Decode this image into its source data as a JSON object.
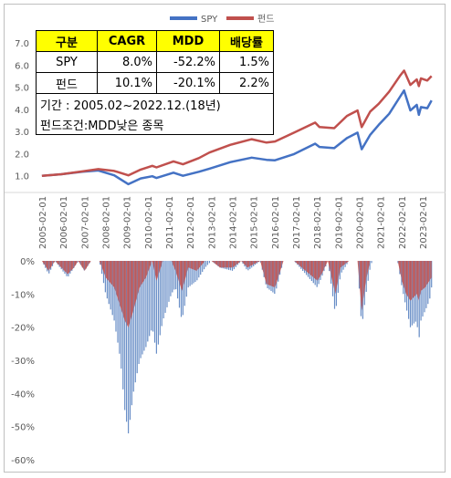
{
  "table": {
    "headers": [
      "구분",
      "CAGR",
      "MDD",
      "배당률"
    ],
    "rows": [
      {
        "name": "SPY",
        "cagr": "8.0%",
        "mdd": "-52.2%",
        "div": "1.5%"
      },
      {
        "name": "펀드",
        "cagr": "10.1%",
        "mdd": "-20.1%",
        "div": "2.2%"
      }
    ],
    "notes": [
      "기간 : 2005.02~2022.12.(18년)",
      "펀드조건:MDD낮은 종목"
    ]
  },
  "colors": {
    "spy": "#4472c4",
    "fund": "#c0504d",
    "spy_dd": "#6a8fc7",
    "fund_dd": "#c0504d"
  },
  "chart_data": [
    {
      "type": "line",
      "legend_position": "top-center",
      "ylim": [
        0.0,
        7.0
      ],
      "yticks": [
        "7.0",
        "6.0",
        "5.0",
        "4.0",
        "3.0",
        "2.0",
        "1.0"
      ],
      "x_start": "2005-02",
      "x_end": "2023-06",
      "series": [
        {
          "name": "SPY",
          "points": [
            [
              2005.08,
              1.0
            ],
            [
              2006.0,
              1.07
            ],
            [
              2007.0,
              1.18
            ],
            [
              2007.75,
              1.24
            ],
            [
              2008.5,
              1.02
            ],
            [
              2009.17,
              0.62
            ],
            [
              2009.75,
              0.88
            ],
            [
              2010.3,
              0.98
            ],
            [
              2010.5,
              0.9
            ],
            [
              2011.3,
              1.14
            ],
            [
              2011.75,
              1.0
            ],
            [
              2012.5,
              1.18
            ],
            [
              2013.0,
              1.32
            ],
            [
              2014.0,
              1.62
            ],
            [
              2015.0,
              1.82
            ],
            [
              2015.7,
              1.72
            ],
            [
              2016.1,
              1.7
            ],
            [
              2017.0,
              1.98
            ],
            [
              2018.0,
              2.45
            ],
            [
              2018.2,
              2.3
            ],
            [
              2018.9,
              2.25
            ],
            [
              2019.5,
              2.7
            ],
            [
              2020.0,
              2.95
            ],
            [
              2020.2,
              2.2
            ],
            [
              2020.6,
              2.85
            ],
            [
              2021.0,
              3.3
            ],
            [
              2021.5,
              3.8
            ],
            [
              2022.0,
              4.55
            ],
            [
              2022.2,
              4.85
            ],
            [
              2022.5,
              3.95
            ],
            [
              2022.8,
              4.2
            ],
            [
              2022.9,
              3.75
            ],
            [
              2023.0,
              4.1
            ],
            [
              2023.3,
              4.05
            ],
            [
              2023.5,
              4.4
            ]
          ]
        },
        {
          "name": "펀드",
          "points": [
            [
              2005.08,
              1.0
            ],
            [
              2006.0,
              1.07
            ],
            [
              2007.0,
              1.2
            ],
            [
              2007.75,
              1.3
            ],
            [
              2008.5,
              1.22
            ],
            [
              2009.17,
              1.02
            ],
            [
              2009.75,
              1.28
            ],
            [
              2010.3,
              1.45
            ],
            [
              2010.5,
              1.38
            ],
            [
              2011.3,
              1.65
            ],
            [
              2011.75,
              1.52
            ],
            [
              2012.5,
              1.8
            ],
            [
              2013.0,
              2.05
            ],
            [
              2014.0,
              2.4
            ],
            [
              2015.0,
              2.65
            ],
            [
              2015.7,
              2.5
            ],
            [
              2016.1,
              2.55
            ],
            [
              2017.0,
              2.95
            ],
            [
              2018.0,
              3.4
            ],
            [
              2018.2,
              3.2
            ],
            [
              2018.9,
              3.15
            ],
            [
              2019.5,
              3.7
            ],
            [
              2020.0,
              3.95
            ],
            [
              2020.2,
              3.2
            ],
            [
              2020.6,
              3.9
            ],
            [
              2021.0,
              4.25
            ],
            [
              2021.5,
              4.8
            ],
            [
              2022.0,
              5.5
            ],
            [
              2022.2,
              5.75
            ],
            [
              2022.5,
              5.1
            ],
            [
              2022.8,
              5.35
            ],
            [
              2022.9,
              5.05
            ],
            [
              2023.0,
              5.4
            ],
            [
              2023.3,
              5.3
            ],
            [
              2023.5,
              5.5
            ]
          ]
        }
      ]
    },
    {
      "type": "area",
      "ylim": [
        -60,
        0
      ],
      "yticks": [
        "0%",
        "-10%",
        "-20%",
        "-30%",
        "-40%",
        "-50%",
        "-60%"
      ],
      "categories": [
        "2005-02-01",
        "2006-02-01",
        "2007-02-01",
        "2008-02-01",
        "2009-02-01",
        "2010-02-01",
        "2011-02-01",
        "2012-02-01",
        "2013-02-01",
        "2014-02-01",
        "2015-02-01",
        "2016-02-01",
        "2017-02-01",
        "2018-02-01",
        "2019-02-01",
        "2020-02-01",
        "2021-02-01",
        "2022-02-01",
        "2023-02-01"
      ],
      "series": [
        {
          "name": "SPY",
          "points": [
            [
              2005.08,
              0
            ],
            [
              2005.4,
              -4
            ],
            [
              2005.7,
              0
            ],
            [
              2006.3,
              -5
            ],
            [
              2006.6,
              -2
            ],
            [
              2006.8,
              0
            ],
            [
              2007.1,
              -3
            ],
            [
              2007.4,
              0
            ],
            [
              2007.8,
              0
            ],
            [
              2008.1,
              -10
            ],
            [
              2008.5,
              -18
            ],
            [
              2008.8,
              -30
            ],
            [
              2009.0,
              -45
            ],
            [
              2009.17,
              -52.2
            ],
            [
              2009.4,
              -40
            ],
            [
              2009.7,
              -30
            ],
            [
              2010.0,
              -26
            ],
            [
              2010.3,
              -20
            ],
            [
              2010.5,
              -28
            ],
            [
              2010.8,
              -18
            ],
            [
              2011.2,
              -10
            ],
            [
              2011.4,
              -8
            ],
            [
              2011.7,
              -18
            ],
            [
              2012.0,
              -8
            ],
            [
              2012.4,
              -6
            ],
            [
              2012.8,
              -2
            ],
            [
              2013.1,
              0
            ],
            [
              2013.5,
              -2
            ],
            [
              2014.1,
              -3
            ],
            [
              2014.5,
              0
            ],
            [
              2014.8,
              -3
            ],
            [
              2015.4,
              0
            ],
            [
              2015.7,
              -8
            ],
            [
              2016.1,
              -10
            ],
            [
              2016.5,
              0
            ],
            [
              2017.0,
              0
            ],
            [
              2018.1,
              -8
            ],
            [
              2018.3,
              -5
            ],
            [
              2018.6,
              0
            ],
            [
              2018.95,
              -16
            ],
            [
              2019.2,
              -4
            ],
            [
              2019.4,
              -2
            ],
            [
              2019.6,
              0
            ],
            [
              2020.0,
              0
            ],
            [
              2020.2,
              -20
            ],
            [
              2020.4,
              -10
            ],
            [
              2020.6,
              -2
            ],
            [
              2020.7,
              0
            ],
            [
              2021.0,
              0
            ],
            [
              2021.9,
              0
            ],
            [
              2022.1,
              -8
            ],
            [
              2022.3,
              -14
            ],
            [
              2022.5,
              -20
            ],
            [
              2022.8,
              -18
            ],
            [
              2022.9,
              -24
            ],
            [
              2023.0,
              -18
            ],
            [
              2023.2,
              -15
            ],
            [
              2023.4,
              -12
            ],
            [
              2023.5,
              -8
            ]
          ]
        },
        {
          "name": "펀드",
          "points": [
            [
              2005.08,
              0
            ],
            [
              2005.4,
              -3
            ],
            [
              2005.7,
              0
            ],
            [
              2006.3,
              -4
            ],
            [
              2006.6,
              -2
            ],
            [
              2006.8,
              0
            ],
            [
              2007.1,
              -3
            ],
            [
              2007.4,
              0
            ],
            [
              2007.8,
              0
            ],
            [
              2008.1,
              -5
            ],
            [
              2008.5,
              -8
            ],
            [
              2008.8,
              -14
            ],
            [
              2009.0,
              -18
            ],
            [
              2009.17,
              -20.1
            ],
            [
              2009.4,
              -15
            ],
            [
              2009.7,
              -8
            ],
            [
              2010.0,
              -5
            ],
            [
              2010.3,
              0
            ],
            [
              2010.5,
              -6
            ],
            [
              2010.8,
              0
            ],
            [
              2011.2,
              0
            ],
            [
              2011.4,
              -3
            ],
            [
              2011.7,
              -9
            ],
            [
              2012.0,
              -2
            ],
            [
              2012.4,
              -3
            ],
            [
              2012.8,
              0
            ],
            [
              2013.1,
              0
            ],
            [
              2013.5,
              -2
            ],
            [
              2014.1,
              -2
            ],
            [
              2014.5,
              0
            ],
            [
              2014.8,
              -2
            ],
            [
              2015.4,
              0
            ],
            [
              2015.7,
              -7
            ],
            [
              2016.1,
              -8
            ],
            [
              2016.5,
              0
            ],
            [
              2017.0,
              0
            ],
            [
              2018.1,
              -6
            ],
            [
              2018.3,
              -4
            ],
            [
              2018.6,
              0
            ],
            [
              2018.95,
              -10
            ],
            [
              2019.2,
              -2
            ],
            [
              2019.4,
              -1
            ],
            [
              2019.6,
              0
            ],
            [
              2020.0,
              0
            ],
            [
              2020.2,
              -15
            ],
            [
              2020.4,
              -6
            ],
            [
              2020.6,
              0
            ],
            [
              2020.7,
              0
            ],
            [
              2021.0,
              0
            ],
            [
              2021.9,
              0
            ],
            [
              2022.1,
              -6
            ],
            [
              2022.3,
              -10
            ],
            [
              2022.5,
              -12
            ],
            [
              2022.8,
              -10
            ],
            [
              2022.9,
              -12
            ],
            [
              2023.0,
              -9
            ],
            [
              2023.2,
              -8
            ],
            [
              2023.4,
              -6
            ],
            [
              2023.5,
              -5
            ]
          ]
        }
      ]
    }
  ]
}
